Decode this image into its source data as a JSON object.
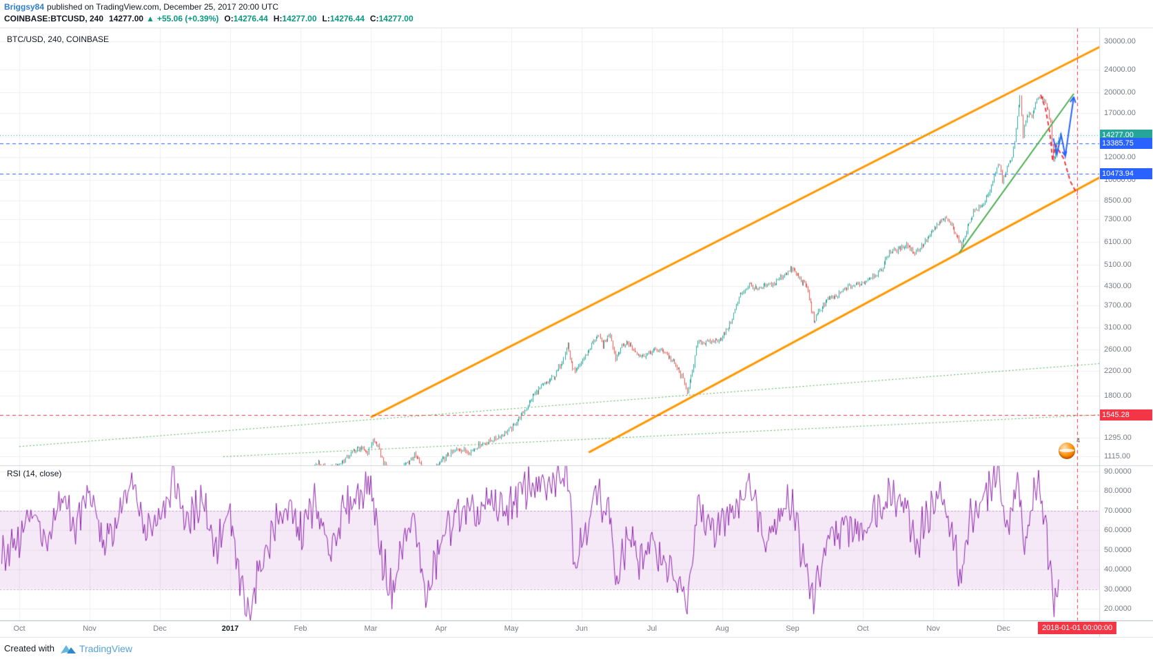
{
  "header": {
    "author": "Briggsy84",
    "published_text": "published on TradingView.com, December 25, 2017 20:00 UTC",
    "symbol": "COINBASE:BTCUSD, 240",
    "last_price": "14277.00",
    "direction_arrow": "▲",
    "change": "+55.06 (+0.39%)",
    "ohlc": [
      {
        "label": "O:",
        "value": "14276.44"
      },
      {
        "label": "H:",
        "value": "14277.00"
      },
      {
        "label": "L:",
        "value": "14276.44"
      },
      {
        "label": "C:",
        "value": "14277.00"
      }
    ]
  },
  "footer": {
    "created_with": "Created with",
    "brand": "TradingView"
  },
  "sticker": {
    "count": "4"
  },
  "chart_data": [
    {
      "type": "candlestick",
      "title": "BTC/USD, 240, COINBASE",
      "scale": "log",
      "x_unit": "months since Oct 2016",
      "x_labels": [
        "Oct",
        "Nov",
        "Dec",
        "2017",
        "Feb",
        "Mar",
        "Apr",
        "May",
        "Jun",
        "Jul",
        "Aug",
        "Sep",
        "Oct",
        "Nov",
        "Dec"
      ],
      "y_ticks": [
        30000,
        24000,
        20000,
        17000,
        12000,
        10000,
        8500,
        7300,
        6100,
        5100,
        4300,
        3700,
        3100,
        2600,
        2200,
        1800,
        1295,
        1115
      ],
      "up_color": "#26a69a",
      "down_color": "#ef5350",
      "price_levels": [
        {
          "label": "14277.00",
          "value": 14277,
          "color": "#26a69a",
          "style": "dotted",
          "role": "last-price"
        },
        {
          "label": "13385.75",
          "value": 13385.75,
          "color": "#2962ff",
          "style": "dashed",
          "role": "alert-line"
        },
        {
          "label": "10473.94",
          "value": 10473.94,
          "color": "#2962ff",
          "style": "dashed",
          "role": "alert-line"
        },
        {
          "label": "1545.28",
          "value": 1545.28,
          "color": "#f23645",
          "style": "dashed",
          "role": "support-level"
        }
      ],
      "vline": {
        "t": 15.05,
        "label": "2018-01-01 00:00:00",
        "color": "#f23645"
      },
      "channel": {
        "color": "#ff9800",
        "upper": [
          [
            5.0,
            1520
          ],
          [
            15.5,
            29800
          ]
        ],
        "lower": [
          [
            8.1,
            1150
          ],
          [
            15.5,
            10600
          ]
        ]
      },
      "trendline_green": {
        "color": "#4caf50",
        "points": [
          [
            13.37,
            5600
          ],
          [
            15.0,
            19800
          ]
        ]
      },
      "dotted_green_lines": [
        [
          [
            0,
            1205
          ],
          [
            15.6,
            2350
          ]
        ],
        [
          [
            2.9,
            1112
          ],
          [
            15.6,
            1560
          ]
        ]
      ],
      "projection_red": {
        "color": "#f23645",
        "points": [
          [
            14.53,
            19650
          ],
          [
            14.6,
            17500
          ],
          [
            14.66,
            14500
          ],
          [
            14.7,
            11600
          ],
          [
            14.74,
            13200
          ],
          [
            14.79,
            12600
          ],
          [
            14.86,
            11800
          ],
          [
            14.95,
            9900
          ],
          [
            15.05,
            8900
          ]
        ]
      },
      "projection_blue": {
        "color": "#2962ff",
        "points": [
          [
            14.71,
            13900
          ],
          [
            14.76,
            12200
          ],
          [
            14.82,
            14300
          ],
          [
            14.88,
            12100
          ],
          [
            15.0,
            19300
          ]
        ]
      },
      "series": [
        [
          4.0,
          965
        ],
        [
          4.12,
          1010
        ],
        [
          4.25,
          1055
        ],
        [
          4.38,
          1005
        ],
        [
          4.5,
          1025
        ],
        [
          4.62,
          1085
        ],
        [
          4.75,
          1160
        ],
        [
          4.85,
          1190
        ],
        [
          4.95,
          1150
        ],
        [
          5.03,
          1270
        ],
        [
          5.1,
          1200
        ],
        [
          5.18,
          1060
        ],
        [
          5.3,
          945
        ],
        [
          5.42,
          1010
        ],
        [
          5.52,
          1060
        ],
        [
          5.62,
          1125
        ],
        [
          5.72,
          1030
        ],
        [
          5.8,
          915
        ],
        [
          5.9,
          1000
        ],
        [
          6.0,
          1075
        ],
        [
          6.12,
          1135
        ],
        [
          6.25,
          1185
        ],
        [
          6.4,
          1155
        ],
        [
          6.55,
          1225
        ],
        [
          6.7,
          1260
        ],
        [
          6.85,
          1320
        ],
        [
          7.0,
          1390
        ],
        [
          7.1,
          1500
        ],
        [
          7.2,
          1620
        ],
        [
          7.3,
          1790
        ],
        [
          7.42,
          1940
        ],
        [
          7.52,
          2010
        ],
        [
          7.62,
          2120
        ],
        [
          7.72,
          2390
        ],
        [
          7.8,
          2720
        ],
        [
          7.85,
          2320
        ],
        [
          7.9,
          2150
        ],
        [
          7.97,
          2300
        ],
        [
          8.05,
          2480
        ],
        [
          8.15,
          2740
        ],
        [
          8.22,
          2910
        ],
        [
          8.3,
          2700
        ],
        [
          8.4,
          2960
        ],
        [
          8.48,
          2420
        ],
        [
          8.55,
          2650
        ],
        [
          8.65,
          2750
        ],
        [
          8.75,
          2580
        ],
        [
          8.85,
          2470
        ],
        [
          8.95,
          2520
        ],
        [
          9.05,
          2600
        ],
        [
          9.18,
          2560
        ],
        [
          9.3,
          2350
        ],
        [
          9.42,
          2100
        ],
        [
          9.5,
          1870
        ],
        [
          9.57,
          2150
        ],
        [
          9.65,
          2800
        ],
        [
          9.75,
          2740
        ],
        [
          9.88,
          2780
        ],
        [
          10.0,
          2860
        ],
        [
          10.12,
          3240
        ],
        [
          10.25,
          4020
        ],
        [
          10.38,
          4360
        ],
        [
          10.5,
          4170
        ],
        [
          10.62,
          4310
        ],
        [
          10.75,
          4420
        ],
        [
          10.88,
          4750
        ],
        [
          11.0,
          4930
        ],
        [
          11.1,
          4550
        ],
        [
          11.2,
          4280
        ],
        [
          11.3,
          3260
        ],
        [
          11.4,
          3610
        ],
        [
          11.5,
          3880
        ],
        [
          11.62,
          3950
        ],
        [
          11.75,
          4230
        ],
        [
          11.88,
          4340
        ],
        [
          12.0,
          4410
        ],
        [
          12.12,
          4660
        ],
        [
          12.25,
          4820
        ],
        [
          12.37,
          5660
        ],
        [
          12.5,
          5730
        ],
        [
          12.62,
          6010
        ],
        [
          12.72,
          5580
        ],
        [
          12.85,
          5960
        ],
        [
          12.95,
          6420
        ],
        [
          13.05,
          6960
        ],
        [
          13.15,
          7350
        ],
        [
          13.23,
          7170
        ],
        [
          13.33,
          6480
        ],
        [
          13.4,
          5870
        ],
        [
          13.47,
          6680
        ],
        [
          13.57,
          7790
        ],
        [
          13.7,
          8140
        ],
        [
          13.82,
          9420
        ],
        [
          13.9,
          10950
        ],
        [
          13.94,
          11340
        ],
        [
          13.98,
          9880
        ],
        [
          14.05,
          11080
        ],
        [
          14.12,
          11850
        ],
        [
          14.18,
          14900
        ],
        [
          14.23,
          19500
        ],
        [
          14.27,
          14350
        ],
        [
          14.33,
          16500
        ],
        [
          14.4,
          16650
        ],
        [
          14.47,
          18900
        ],
        [
          14.53,
          19650
        ],
        [
          14.58,
          18400
        ],
        [
          14.63,
          17200
        ],
        [
          14.67,
          15600
        ],
        [
          14.71,
          11400
        ],
        [
          14.74,
          12900
        ],
        [
          14.77,
          13600
        ],
        [
          14.8,
          14277
        ]
      ]
    },
    {
      "type": "line",
      "title": "RSI (14, close)",
      "color": "#8e24aa",
      "band": {
        "from": 30,
        "to": 70,
        "fill": "#9c27b0",
        "border_style": "dashed"
      },
      "y_ticks": [
        90,
        80,
        70,
        60,
        50,
        40,
        30,
        20
      ],
      "series": [
        [
          -0.25,
          48
        ],
        [
          0,
          55
        ],
        [
          0.2,
          72
        ],
        [
          0.4,
          48
        ],
        [
          0.6,
          78
        ],
        [
          0.8,
          62
        ],
        [
          1.0,
          80
        ],
        [
          1.2,
          52
        ],
        [
          1.4,
          64
        ],
        [
          1.6,
          84
        ],
        [
          1.8,
          58
        ],
        [
          2.0,
          70
        ],
        [
          2.2,
          86
        ],
        [
          2.4,
          62
        ],
        [
          2.6,
          78
        ],
        [
          2.8,
          50
        ],
        [
          3.0,
          68
        ],
        [
          3.1,
          40
        ],
        [
          3.25,
          16
        ],
        [
          3.4,
          38
        ],
        [
          3.6,
          60
        ],
        [
          3.8,
          72
        ],
        [
          4.0,
          58
        ],
        [
          4.2,
          74
        ],
        [
          4.4,
          49
        ],
        [
          4.6,
          68
        ],
        [
          4.8,
          78
        ],
        [
          5.0,
          84
        ],
        [
          5.15,
          46
        ],
        [
          5.3,
          28
        ],
        [
          5.45,
          52
        ],
        [
          5.6,
          66
        ],
        [
          5.8,
          24
        ],
        [
          5.95,
          48
        ],
        [
          6.1,
          62
        ],
        [
          6.3,
          70
        ],
        [
          6.5,
          66
        ],
        [
          6.7,
          74
        ],
        [
          6.9,
          70
        ],
        [
          7.1,
          78
        ],
        [
          7.3,
          84
        ],
        [
          7.5,
          80
        ],
        [
          7.7,
          88
        ],
        [
          7.82,
          90
        ],
        [
          7.9,
          42
        ],
        [
          8.0,
          55
        ],
        [
          8.2,
          78
        ],
        [
          8.4,
          70
        ],
        [
          8.5,
          30
        ],
        [
          8.65,
          58
        ],
        [
          8.8,
          46
        ],
        [
          9.0,
          52
        ],
        [
          9.2,
          44
        ],
        [
          9.4,
          30
        ],
        [
          9.5,
          20
        ],
        [
          9.65,
          72
        ],
        [
          9.8,
          60
        ],
        [
          10.0,
          64
        ],
        [
          10.2,
          74
        ],
        [
          10.4,
          84
        ],
        [
          10.6,
          56
        ],
        [
          10.8,
          68
        ],
        [
          11.0,
          76
        ],
        [
          11.15,
          44
        ],
        [
          11.3,
          24
        ],
        [
          11.45,
          48
        ],
        [
          11.6,
          58
        ],
        [
          11.8,
          62
        ],
        [
          12.0,
          60
        ],
        [
          12.2,
          72
        ],
        [
          12.4,
          80
        ],
        [
          12.6,
          74
        ],
        [
          12.75,
          52
        ],
        [
          12.9,
          66
        ],
        [
          13.1,
          78
        ],
        [
          13.25,
          60
        ],
        [
          13.4,
          36
        ],
        [
          13.55,
          70
        ],
        [
          13.7,
          74
        ],
        [
          13.85,
          86
        ],
        [
          13.95,
          90
        ],
        [
          14.0,
          62
        ],
        [
          14.1,
          70
        ],
        [
          14.2,
          88
        ],
        [
          14.3,
          48
        ],
        [
          14.4,
          72
        ],
        [
          14.5,
          86
        ],
        [
          14.6,
          60
        ],
        [
          14.67,
          34
        ],
        [
          14.72,
          22
        ],
        [
          14.77,
          38
        ],
        [
          14.8,
          44
        ]
      ]
    }
  ]
}
